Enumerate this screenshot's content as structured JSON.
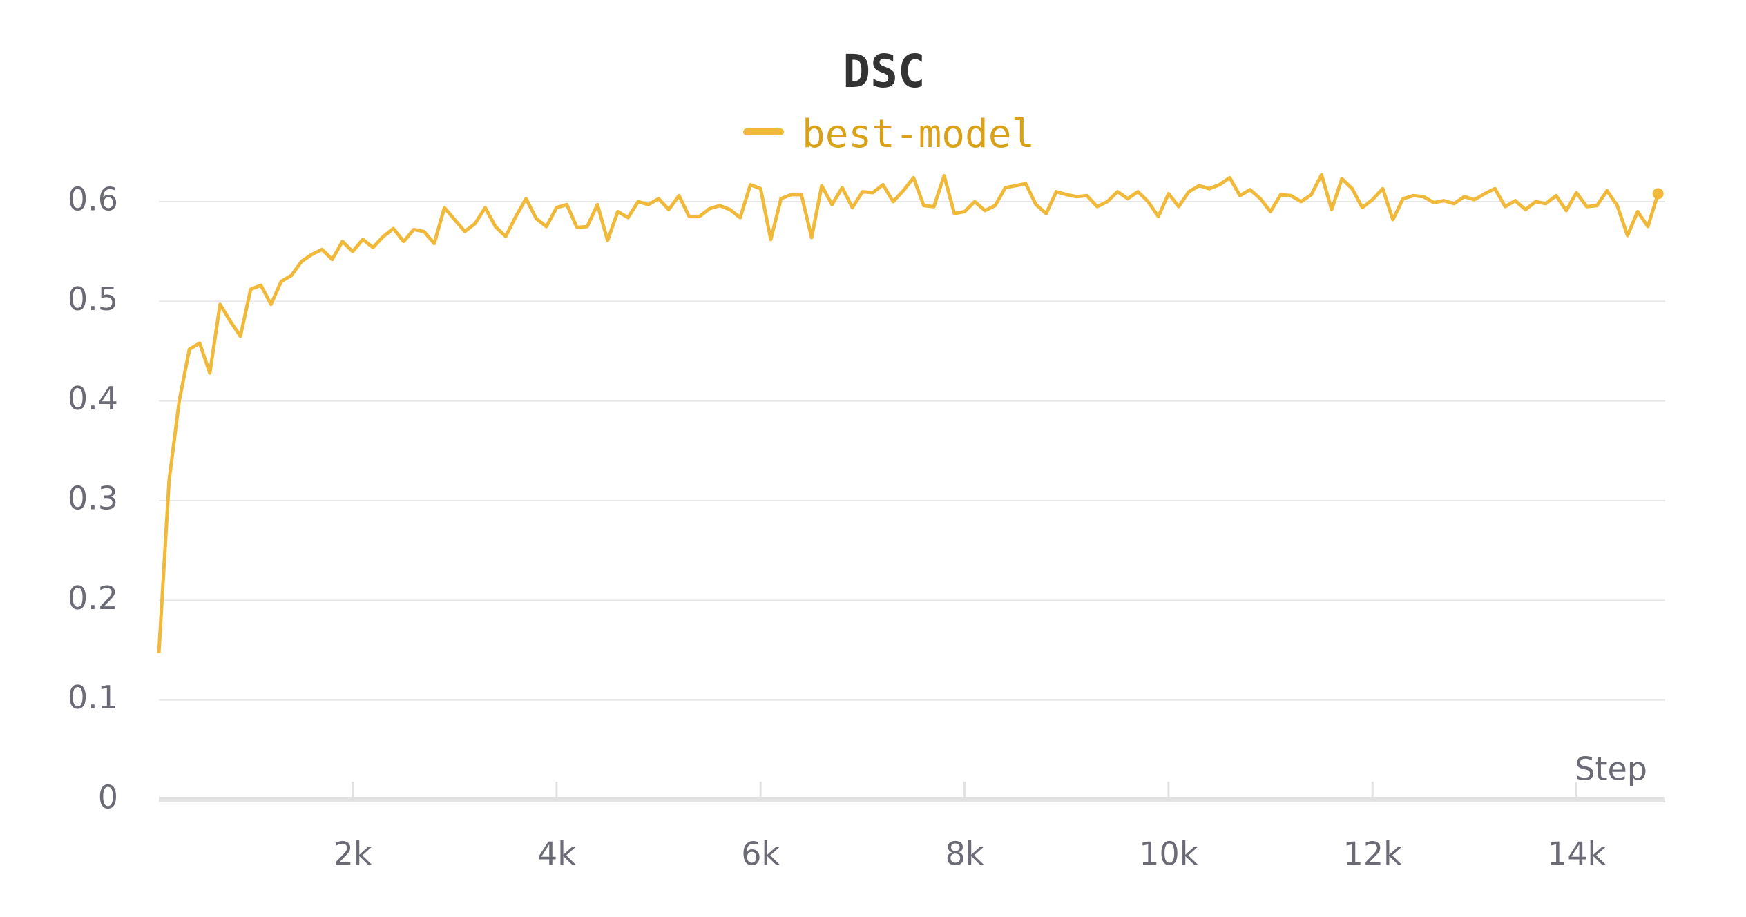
{
  "chart_data": {
    "type": "line",
    "title": "DSC",
    "xlabel": "Step",
    "series": [
      {
        "name": "best-model",
        "color": "#f0b93a",
        "values": [
          0.147,
          0.32,
          0.4,
          0.452,
          0.458,
          0.428,
          0.497,
          0.48,
          0.465,
          0.512,
          0.516,
          0.497,
          0.52,
          0.526,
          0.54,
          0.547,
          0.552,
          0.542,
          0.56,
          0.55,
          0.562,
          0.554,
          0.565,
          0.573,
          0.56,
          0.572,
          0.57,
          0.558,
          0.594,
          0.582,
          0.57,
          0.578,
          0.594,
          0.575,
          0.565,
          0.585,
          0.603,
          0.583,
          0.575,
          0.594,
          0.597,
          0.574,
          0.575,
          0.597,
          0.561,
          0.59,
          0.584,
          0.6,
          0.597,
          0.603,
          0.592,
          0.606,
          0.585,
          0.585,
          0.593,
          0.596,
          0.592,
          0.584,
          0.617,
          0.613,
          0.562,
          0.603,
          0.607,
          0.607,
          0.564,
          0.616,
          0.597,
          0.614,
          0.594,
          0.61,
          0.609,
          0.617,
          0.6,
          0.611,
          0.624,
          0.596,
          0.595,
          0.626,
          0.588,
          0.59,
          0.6,
          0.591,
          0.596,
          0.614,
          0.616,
          0.618,
          0.597,
          0.588,
          0.61,
          0.607,
          0.605,
          0.606,
          0.595,
          0.6,
          0.61,
          0.603,
          0.61,
          0.6,
          0.585,
          0.608,
          0.595,
          0.61,
          0.616,
          0.613,
          0.617,
          0.624,
          0.606,
          0.612,
          0.603,
          0.59,
          0.607,
          0.606,
          0.6,
          0.607,
          0.627,
          0.592,
          0.623,
          0.613,
          0.594,
          0.602,
          0.613,
          0.582,
          0.603,
          0.606,
          0.605,
          0.599,
          0.601,
          0.598,
          0.605,
          0.602,
          0.608,
          0.613,
          0.595,
          0.601,
          0.592,
          0.6,
          0.598,
          0.606,
          0.591,
          0.609,
          0.595,
          0.596,
          0.611,
          0.596,
          0.566,
          0.59,
          0.575,
          0.608
        ]
      }
    ],
    "x": [
      100,
      200,
      300,
      400,
      500,
      600,
      700,
      800,
      900,
      1000,
      1100,
      1200,
      1300,
      1400,
      1500,
      1600,
      1700,
      1800,
      1900,
      2000,
      2100,
      2200,
      2300,
      2400,
      2500,
      2600,
      2700,
      2800,
      2900,
      3000,
      3100,
      3200,
      3300,
      3400,
      3500,
      3600,
      3700,
      3800,
      3900,
      4000,
      4100,
      4200,
      4300,
      4400,
      4500,
      4600,
      4700,
      4800,
      4900,
      5000,
      5100,
      5200,
      5300,
      5400,
      5500,
      5600,
      5700,
      5800,
      5900,
      6000,
      6100,
      6200,
      6300,
      6400,
      6500,
      6600,
      6700,
      6800,
      6900,
      7000,
      7100,
      7200,
      7300,
      7400,
      7500,
      7600,
      7700,
      7800,
      7900,
      8000,
      8100,
      8200,
      8300,
      8400,
      8500,
      8600,
      8700,
      8800,
      8900,
      9000,
      9100,
      9200,
      9300,
      9400,
      9500,
      9600,
      9700,
      9800,
      9900,
      10000,
      10100,
      10200,
      10300,
      10400,
      10500,
      10600,
      10700,
      10800,
      10900,
      11000,
      11100,
      11200,
      11300,
      11400,
      11500,
      11600,
      11700,
      11800,
      11900,
      12000,
      12100,
      12200,
      12300,
      12400,
      12500,
      12600,
      12700,
      12800,
      12900,
      13000,
      13100,
      13200,
      13300,
      13400,
      13500,
      13600,
      13700,
      13800,
      13900,
      14000,
      14100,
      14200,
      14300,
      14400,
      14500,
      14600,
      14700,
      14800
    ],
    "xlim": [
      100,
      14870
    ],
    "xticks": [
      {
        "value": 2000,
        "label": "2k"
      },
      {
        "value": 4000,
        "label": "4k"
      },
      {
        "value": 6000,
        "label": "6k"
      },
      {
        "value": 8000,
        "label": "8k"
      },
      {
        "value": 10000,
        "label": "10k"
      },
      {
        "value": 12000,
        "label": "12k"
      },
      {
        "value": 14000,
        "label": "14k"
      }
    ],
    "ylim": [
      0,
      0.6
    ],
    "yticks": [
      0,
      0.1,
      0.2,
      0.3,
      0.4,
      0.5,
      0.6
    ],
    "grid": true
  }
}
